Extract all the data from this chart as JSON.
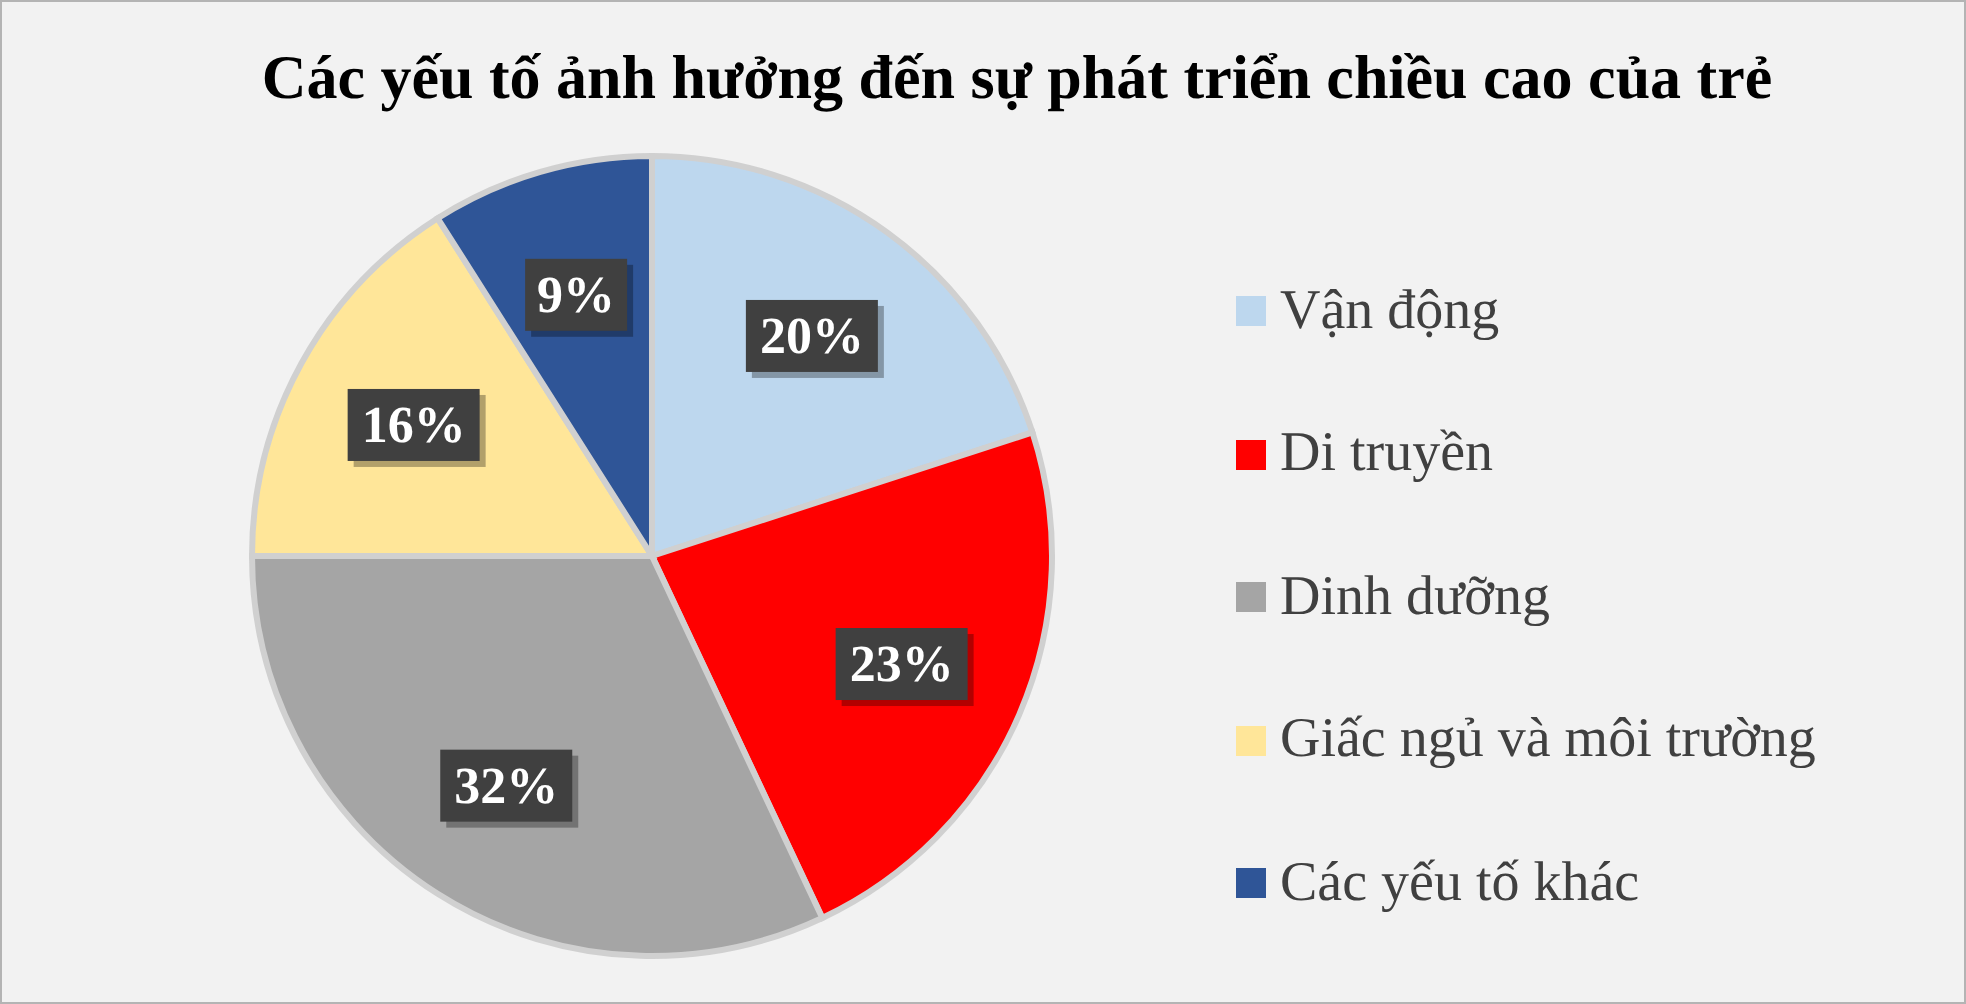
{
  "chart_data": {
    "type": "pie",
    "title": "Các yếu tố ảnh hưởng đến sự phát triển chiều cao của trẻ",
    "categories": [
      "Vận động",
      "Di truyền",
      "Dinh dưỡng",
      "Giấc ngủ và môi trường",
      "Các yếu tố khác"
    ],
    "values": [
      20,
      23,
      32,
      16,
      9
    ],
    "value_labels": [
      "20%",
      "23%",
      "32%",
      "16%",
      "9%"
    ],
    "colors": [
      "#bdd7ee",
      "#ff0000",
      "#a5a5a5",
      "#ffe699",
      "#2f5597"
    ],
    "legend": "right"
  }
}
